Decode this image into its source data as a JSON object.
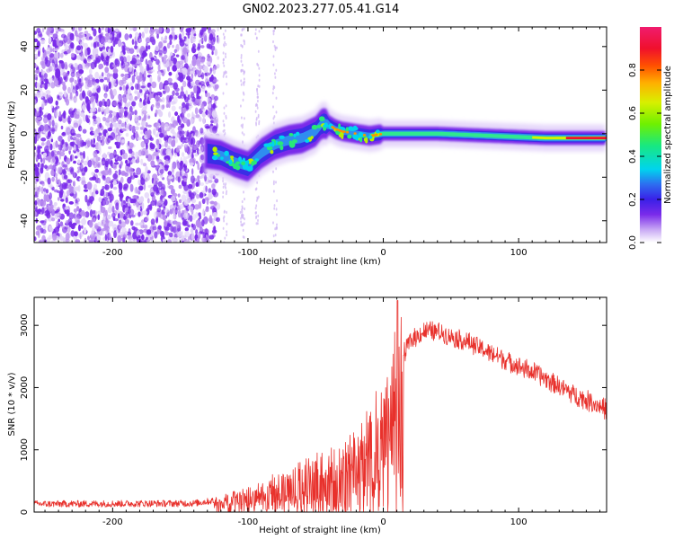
{
  "title": "GN02.2023.277.05.41.G14",
  "chart_data": [
    {
      "type": "heatmap",
      "name": "spectrogram",
      "xlabel": "Height of straight line (km)",
      "ylabel": "Frequency (Hz)",
      "xlim": [
        -258,
        165
      ],
      "ylim": [
        -50,
        49
      ],
      "xticks": [
        -200,
        -100,
        0,
        100
      ],
      "yticks": [
        -40,
        -20,
        0,
        20,
        40
      ],
      "colorbar": {
        "label": "Normalized spectral amplitude",
        "range": [
          0,
          1
        ],
        "ticks": [
          0.0,
          0.2,
          0.4,
          0.6,
          0.8
        ]
      },
      "ridge_frequency_track": {
        "x": [
          -130,
          -120,
          -110,
          -100,
          -95,
          -90,
          -80,
          -70,
          -60,
          -50,
          -45,
          -40,
          -35,
          -30,
          -20,
          -10,
          0,
          20,
          40,
          80,
          120,
          160
        ],
        "y": [
          -9,
          -10,
          -13,
          -15,
          -12,
          -9,
          -5,
          -3,
          -2,
          1,
          5,
          4,
          2,
          1,
          0,
          -1,
          0,
          0,
          0,
          -1,
          -2,
          -2
        ]
      }
    },
    {
      "type": "line",
      "name": "snr",
      "xlabel": "Height of straight line (km)",
      "ylabel": "SNR (10 * v/v)",
      "xlim": [
        -258,
        165
      ],
      "ylim": [
        0,
        3450
      ],
      "xticks": [
        -200,
        -100,
        0,
        100
      ],
      "yticks": [
        0,
        1000,
        2000,
        3000
      ],
      "color": "#e8312c",
      "envelope": {
        "x": [
          -258,
          -140,
          -120,
          -100,
          -80,
          -60,
          -40,
          -20,
          0,
          10,
          20,
          30,
          40,
          60,
          80,
          100,
          120,
          140,
          165
        ],
        "y": [
          130,
          140,
          200,
          300,
          450,
          600,
          800,
          1000,
          1500,
          2300,
          2750,
          2900,
          2900,
          2750,
          2550,
          2350,
          2150,
          1900,
          1650
        ]
      }
    }
  ]
}
